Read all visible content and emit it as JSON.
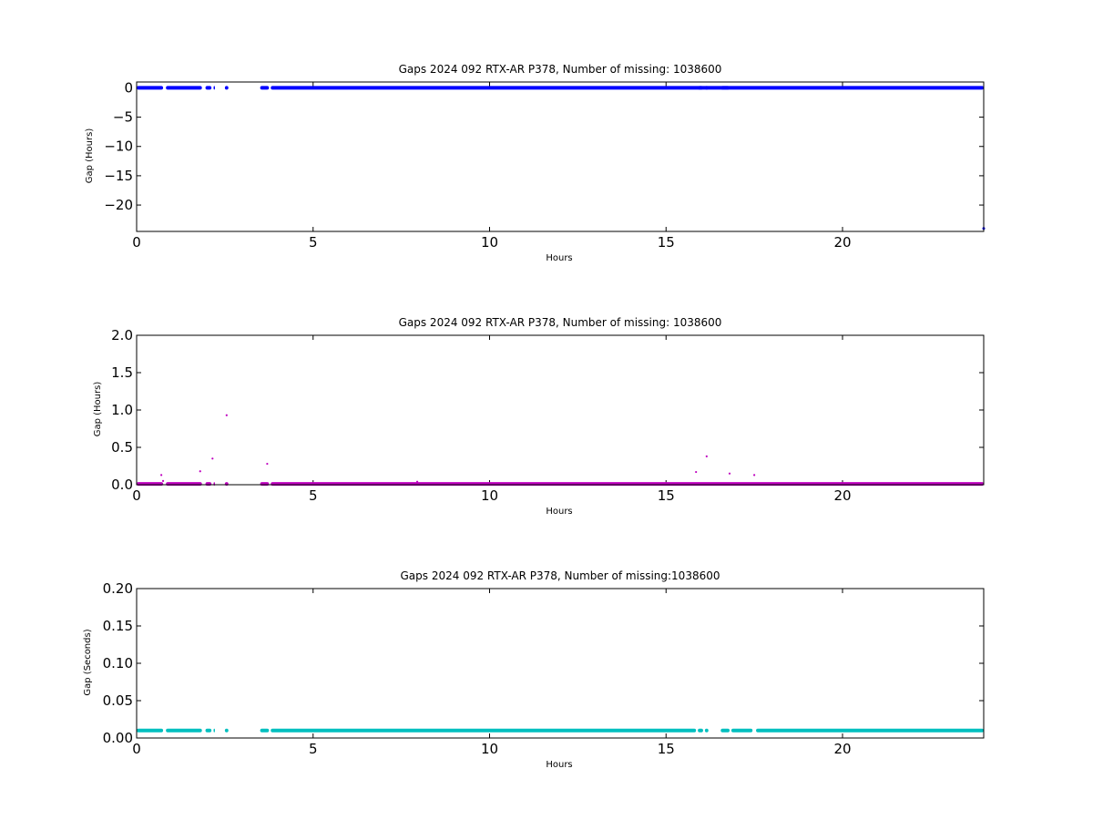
{
  "chart_data": [
    {
      "type": "scatter",
      "title": "Gaps 2024 092 RTX-AR  P378, Number of missing: 1038600",
      "xlabel": "Hours",
      "ylabel": "Gap (Hours)",
      "xlim": [
        0,
        24
      ],
      "ylim": [
        -24.5,
        1
      ],
      "xticks": [
        "0",
        "5",
        "10",
        "15",
        "20"
      ],
      "yticks": [
        "0",
        "−5",
        "−10",
        "−15",
        "−20"
      ],
      "color": "#0000ff",
      "series": [
        {
          "baseline_value": 0,
          "segments": [
            [
              0.0,
              0.75
            ],
            [
              0.83,
              1.85
            ],
            [
              1.95,
              2.12
            ],
            [
              2.18,
              2.22
            ],
            [
              2.5,
              2.6
            ],
            [
              3.5,
              3.75
            ],
            [
              3.8,
              24.0
            ]
          ],
          "segments_b": [
            [
              15.9,
              16.05
            ],
            [
              16.1,
              16.2
            ],
            [
              16.55,
              16.8
            ]
          ],
          "gap_markers_on_baseline": [
            0.7,
            2.1,
            3.7,
            15.85,
            16.15,
            16.75
          ],
          "extra_points": [
            {
              "x": 24.0,
              "y": -24.0
            }
          ]
        }
      ]
    },
    {
      "type": "scatter",
      "title": "Gaps 2024 092 RTX-AR  P378, Number of missing: 1038600",
      "xlabel": "Hours",
      "ylabel": "Gap (Hours)",
      "xlim": [
        0,
        24
      ],
      "ylim": [
        0,
        2.0
      ],
      "xticks": [
        "0",
        "5",
        "10",
        "15",
        "20"
      ],
      "yticks": [
        "0.0",
        "0.5",
        "1.0",
        "1.5",
        "2.0"
      ],
      "color": "#bf00bf",
      "series": [
        {
          "baseline_value": 0.01,
          "segments": [
            [
              0.0,
              0.75
            ],
            [
              0.83,
              1.85
            ],
            [
              1.95,
              2.12
            ],
            [
              2.18,
              2.22
            ],
            [
              2.5,
              2.6
            ],
            [
              3.5,
              3.75
            ],
            [
              3.8,
              24.0
            ]
          ],
          "points": [
            {
              "x": 0.7,
              "y": 0.13
            },
            {
              "x": 0.75,
              "y": 0.05
            },
            {
              "x": 1.8,
              "y": 0.18
            },
            {
              "x": 2.15,
              "y": 0.35
            },
            {
              "x": 2.55,
              "y": 0.93
            },
            {
              "x": 3.7,
              "y": 0.28
            },
            {
              "x": 7.95,
              "y": 0.04
            },
            {
              "x": 15.85,
              "y": 0.17
            },
            {
              "x": 16.15,
              "y": 0.38
            },
            {
              "x": 16.8,
              "y": 0.15
            },
            {
              "x": 17.5,
              "y": 0.13
            }
          ]
        }
      ]
    },
    {
      "type": "scatter",
      "title": "Gaps 2024 092 RTX-AR  P378, Number of missing:1038600",
      "xlabel": "Hours",
      "ylabel": "Gap (Seconds)",
      "xlim": [
        0,
        24
      ],
      "ylim": [
        0,
        0.2
      ],
      "xticks": [
        "0",
        "5",
        "10",
        "15",
        "20"
      ],
      "yticks": [
        "0.00",
        "0.05",
        "0.10",
        "0.15",
        "0.20"
      ],
      "color": "#00bfbf",
      "series": [
        {
          "baseline_value": 0.01,
          "segments": [
            [
              0.0,
              0.75
            ],
            [
              0.83,
              1.85
            ],
            [
              1.95,
              2.12
            ],
            [
              2.18,
              2.22
            ],
            [
              2.5,
              2.6
            ],
            [
              3.5,
              3.75
            ],
            [
              3.8,
              15.85
            ],
            [
              15.9,
              16.05
            ],
            [
              16.1,
              16.2
            ],
            [
              16.55,
              16.8
            ],
            [
              16.85,
              17.45
            ],
            [
              17.55,
              24.0
            ]
          ]
        }
      ]
    }
  ]
}
